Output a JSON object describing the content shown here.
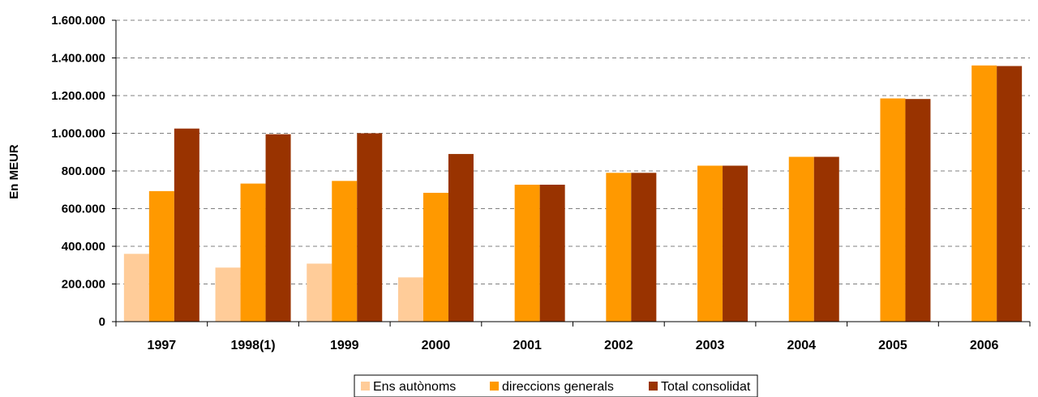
{
  "chart_data": {
    "type": "bar",
    "title": "",
    "xlabel": "",
    "ylabel": "En MEUR",
    "ylim": [
      0,
      1600000
    ],
    "yticks": [
      0,
      200000,
      400000,
      600000,
      800000,
      1000000,
      1200000,
      1400000,
      1600000
    ],
    "ytick_labels": [
      "0",
      "200.000",
      "400.000",
      "600.000",
      "800.000",
      "1.000.000",
      "1.200.000",
      "1.400.000",
      "1.600.000"
    ],
    "grid": "horizontal dashed",
    "legend_position": "bottom-center",
    "categories": [
      "1997",
      "1998(1)",
      "1999",
      "2000",
      "2001",
      "2002",
      "2003",
      "2004",
      "2005",
      "2006"
    ],
    "series": [
      {
        "name": "Ens autònoms",
        "color": "#FFCC99",
        "values": [
          360000,
          287000,
          308000,
          235000,
          0,
          0,
          0,
          0,
          0,
          0
        ]
      },
      {
        "name": "direccions generals",
        "color": "#FF9900",
        "values": [
          693000,
          733000,
          747000,
          684000,
          727000,
          790000,
          828000,
          875000,
          1185000,
          1360000
        ]
      },
      {
        "name": "Total consolidat",
        "color": "#993300",
        "values": [
          1025000,
          995000,
          1000000,
          890000,
          727000,
          790000,
          828000,
          875000,
          1182000,
          1357000
        ]
      }
    ]
  }
}
